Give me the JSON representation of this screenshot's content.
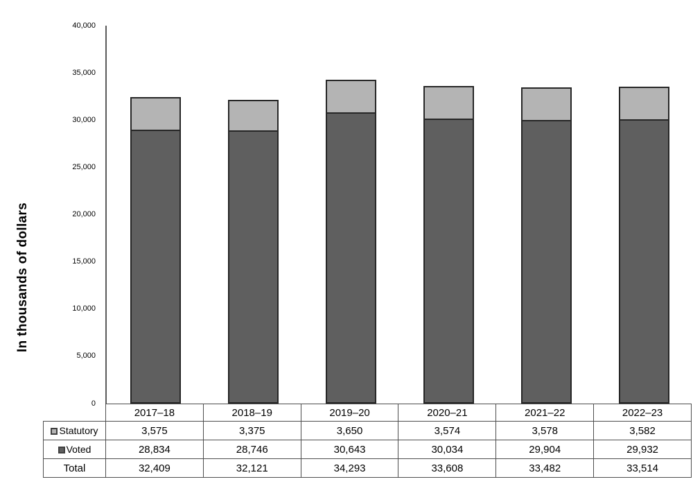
{
  "chart_data": {
    "type": "bar",
    "stacked": true,
    "title": "",
    "xlabel": "",
    "ylabel": "In thousands of dollars",
    "ylim": [
      0,
      40000
    ],
    "ytick_step": 5000,
    "ytick_labels": [
      "0",
      "5,000",
      "10,000",
      "15,000",
      "20,000",
      "25,000",
      "30,000",
      "35,000",
      "40,000"
    ],
    "grid": false,
    "legend_position": "table-left-column",
    "categories": [
      "2017–18",
      "2018–19",
      "2019–20",
      "2020–21",
      "2021–22",
      "2022–23"
    ],
    "series": [
      {
        "name": "Statutory",
        "color": "#b4b4b4",
        "values": [
          3575,
          3375,
          3650,
          3574,
          3578,
          3582
        ],
        "labels": [
          "3,575",
          "3,375",
          "3,650",
          "3,574",
          "3,578",
          "3,582"
        ]
      },
      {
        "name": "Voted",
        "color": "#5f5f5f",
        "values": [
          28834,
          28746,
          30643,
          30034,
          29904,
          29932
        ],
        "labels": [
          "28,834",
          "28,746",
          "30,643",
          "30,034",
          "29,904",
          "29,932"
        ]
      }
    ],
    "total_row": {
      "name": "Total",
      "values": [
        32409,
        32121,
        34293,
        33608,
        33482,
        33514
      ],
      "labels": [
        "32,409",
        "32,121",
        "34,293",
        "33,608",
        "33,482",
        "33,514"
      ]
    }
  },
  "colors": {
    "statutory_fill": "#b4b4b4",
    "voted_fill": "#5f5f5f",
    "bar_border": "#262626",
    "axis_line": "#595959",
    "table_border": "#4d4d4d",
    "text": "#000000",
    "background": "#ffffff"
  }
}
